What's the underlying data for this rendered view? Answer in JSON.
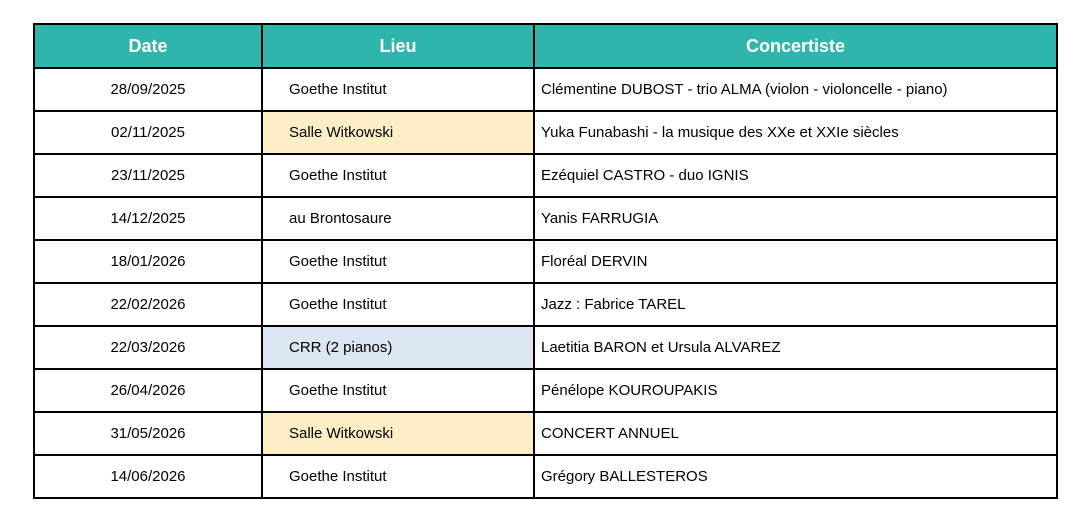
{
  "colors": {
    "header_bg": "#2fb5ab",
    "header_text": "#ffffff",
    "grid_border": "#000000",
    "highlight_yellow": "#fcefc5",
    "highlight_blue": "#dce6f1"
  },
  "table": {
    "headers": {
      "date": "Date",
      "lieu": "Lieu",
      "concertiste": "Concertiste"
    },
    "rows": [
      {
        "date": "28/09/2025",
        "lieu": "Goethe Institut",
        "concertiste": "Clémentine DUBOST - trio ALMA (violon - violoncelle - piano)",
        "lieu_highlight": "none"
      },
      {
        "date": "02/11/2025",
        "lieu": "Salle Witkowski",
        "concertiste": "Yuka Funabashi - la musique des XXe et XXIe siècles",
        "lieu_highlight": "yellow"
      },
      {
        "date": "23/11/2025",
        "lieu": "Goethe Institut",
        "concertiste": "Ezéquiel CASTRO - duo IGNIS",
        "lieu_highlight": "none"
      },
      {
        "date": "14/12/2025",
        "lieu": "au Brontosaure",
        "concertiste": "Yanis FARRUGIA",
        "lieu_highlight": "none"
      },
      {
        "date": "18/01/2026",
        "lieu": "Goethe Institut",
        "concertiste": "Floréal DERVIN",
        "lieu_highlight": "none"
      },
      {
        "date": "22/02/2026",
        "lieu": "Goethe Institut",
        "concertiste": "Jazz : Fabrice TAREL",
        "lieu_highlight": "none"
      },
      {
        "date": "22/03/2026",
        "lieu": "CRR (2 pianos)",
        "concertiste": "Laetitia BARON et Ursula ALVAREZ",
        "lieu_highlight": "blue"
      },
      {
        "date": "26/04/2026",
        "lieu": "Goethe Institut",
        "concertiste": "Pénélope KOUROUPAKIS",
        "lieu_highlight": "none"
      },
      {
        "date": "31/05/2026",
        "lieu": "Salle Witkowski",
        "concertiste": "CONCERT ANNUEL",
        "lieu_highlight": "yellow"
      },
      {
        "date": "14/06/2026",
        "lieu": "Goethe Institut",
        "concertiste": "Grégory BALLESTEROS",
        "lieu_highlight": "none"
      }
    ]
  }
}
